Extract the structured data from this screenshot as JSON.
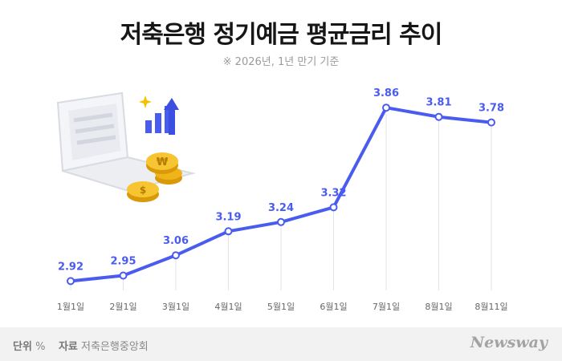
{
  "header": {
    "title": "저축은행 정기예금 평균금리 추이",
    "subtitle": "※ 2026년, 1년 만기 기준"
  },
  "footer": {
    "unit_label": "단위",
    "unit_value": "%",
    "source_label": "자료",
    "source_value": "저축은행중앙회",
    "brand": "Newsway"
  },
  "colors": {
    "line": "#4a5cf0",
    "guide": "#e3e3e3",
    "footer_bg": "#f2f2f2"
  },
  "icons": [
    "laptop-icon",
    "coin-won-icon",
    "coin-dollar-icon",
    "rising-bar-chart-icon",
    "sparkle-icon"
  ],
  "chart_data": {
    "type": "line",
    "categories": [
      "1월1일",
      "2월1일",
      "3월1일",
      "4월1일",
      "5월1일",
      "6월1일",
      "7월1일",
      "8월1일",
      "8월11일"
    ],
    "values": [
      2.92,
      2.95,
      3.06,
      3.19,
      3.24,
      3.32,
      3.86,
      3.81,
      3.78
    ],
    "value_labels": [
      "2.92",
      "2.95",
      "3.06",
      "3.19",
      "3.24",
      "3.32",
      "3.86",
      "3.81",
      "3.78"
    ],
    "title": "저축은행 정기예금 평균금리 추이",
    "xlabel": "",
    "ylabel": "",
    "ylim": [
      2.9,
      3.9
    ],
    "grid": false
  }
}
